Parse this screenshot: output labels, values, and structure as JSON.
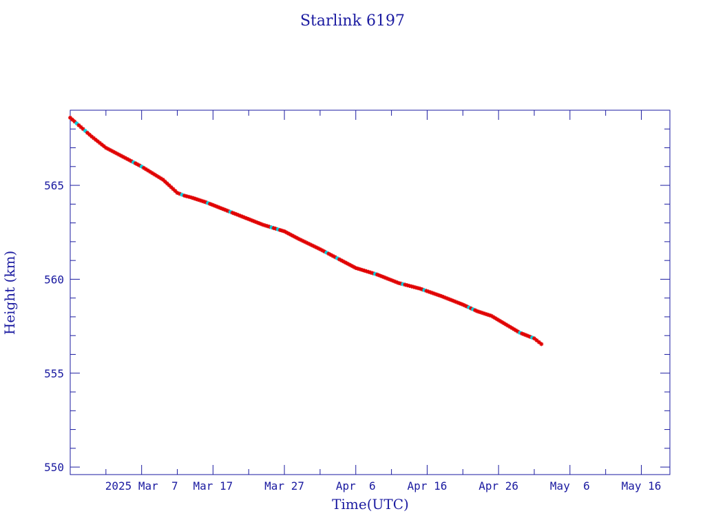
{
  "chart_data": {
    "type": "scatter",
    "title": "Starlink 6197",
    "xlabel": "Time(UTC)",
    "ylabel": "Height (km)",
    "xlim": [
      "2025-02-25",
      "2025-05-20"
    ],
    "ylim": [
      549.6,
      569.0
    ],
    "x_tick_labels": [
      {
        "date": "2025-03-07",
        "label": "2025 Mar  7"
      },
      {
        "date": "2025-03-17",
        "label": "Mar 17"
      },
      {
        "date": "2025-03-27",
        "label": "Mar 27"
      },
      {
        "date": "2025-04-06",
        "label": "Apr  6"
      },
      {
        "date": "2025-04-16",
        "label": "Apr 16"
      },
      {
        "date": "2025-04-26",
        "label": "Apr 26"
      },
      {
        "date": "2025-05-06",
        "label": "May  6"
      },
      {
        "date": "2025-05-16",
        "label": "May 16"
      }
    ],
    "y_tick_labels": [
      "550",
      "555",
      "560",
      "565"
    ],
    "y_tick_values": [
      550,
      555,
      560,
      565
    ],
    "grid": false,
    "colors": {
      "axis": "#1a1aa0",
      "points": "#e00000",
      "accent_points": "#00d0e0",
      "line": "#000000"
    },
    "series": [
      {
        "x": [
          "2025-02-25",
          "2025-02-28",
          "2025-03-02",
          "2025-03-05",
          "2025-03-07",
          "2025-03-10",
          "2025-03-12",
          "2025-03-13",
          "2025-03-14",
          "2025-03-16",
          "2025-03-18",
          "2025-03-20",
          "2025-03-22",
          "2025-03-24",
          "2025-03-27",
          "2025-03-29",
          "2025-04-01",
          "2025-04-04",
          "2025-04-06",
          "2025-04-09",
          "2025-04-12",
          "2025-04-15",
          "2025-04-18",
          "2025-04-21",
          "2025-04-23",
          "2025-04-25",
          "2025-04-27",
          "2025-04-29",
          "2025-05-01",
          "2025-05-02"
        ],
        "y": [
          568.6,
          567.6,
          567.0,
          566.4,
          566.0,
          565.3,
          564.6,
          564.45,
          564.35,
          564.1,
          563.8,
          563.5,
          563.2,
          562.9,
          562.55,
          562.15,
          561.6,
          561.0,
          560.6,
          560.25,
          559.8,
          559.5,
          559.1,
          558.65,
          558.3,
          558.05,
          557.6,
          557.15,
          556.85,
          556.55
        ]
      }
    ]
  }
}
